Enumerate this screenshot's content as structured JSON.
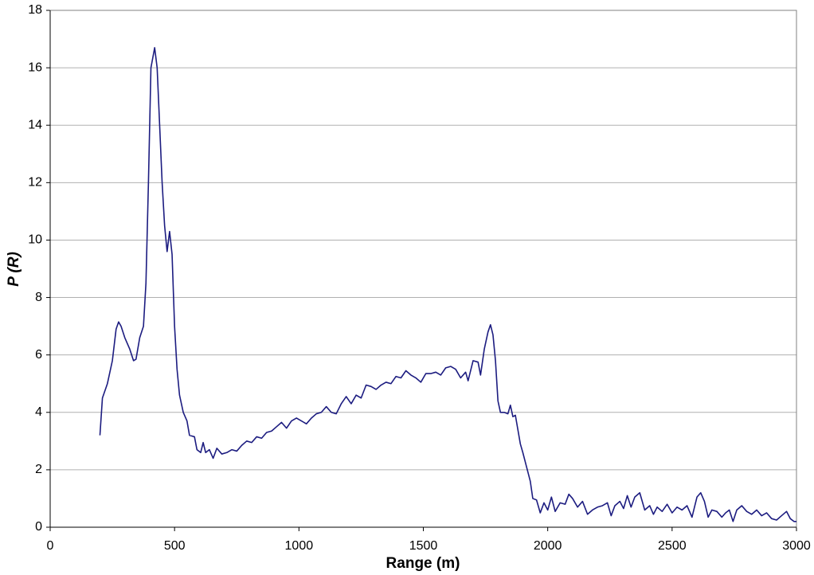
{
  "chart_data": {
    "type": "line",
    "x_label": "Range (m)",
    "y_label": "P (R)",
    "x": [
      200,
      210,
      230,
      250,
      265,
      275,
      285,
      300,
      320,
      335,
      345,
      360,
      375,
      385,
      395,
      405,
      420,
      430,
      440,
      450,
      460,
      470,
      480,
      490,
      500,
      510,
      520,
      535,
      550,
      560,
      580,
      590,
      605,
      615,
      625,
      640,
      655,
      670,
      690,
      710,
      730,
      750,
      770,
      790,
      810,
      830,
      850,
      870,
      890,
      910,
      930,
      950,
      970,
      990,
      1010,
      1030,
      1050,
      1070,
      1090,
      1110,
      1130,
      1150,
      1170,
      1190,
      1210,
      1230,
      1250,
      1270,
      1290,
      1310,
      1330,
      1350,
      1370,
      1390,
      1410,
      1430,
      1450,
      1470,
      1490,
      1510,
      1530,
      1550,
      1570,
      1590,
      1610,
      1630,
      1650,
      1670,
      1680,
      1700,
      1720,
      1730,
      1745,
      1760,
      1770,
      1780,
      1790,
      1800,
      1810,
      1825,
      1840,
      1850,
      1860,
      1870,
      1880,
      1890,
      1900,
      1915,
      1930,
      1940,
      1955,
      1970,
      1985,
      2000,
      2015,
      2030,
      2050,
      2070,
      2085,
      2100,
      2120,
      2140,
      2160,
      2180,
      2200,
      2220,
      2240,
      2255,
      2270,
      2290,
      2305,
      2320,
      2335,
      2350,
      2370,
      2390,
      2410,
      2425,
      2440,
      2460,
      2480,
      2500,
      2520,
      2540,
      2560,
      2580,
      2600,
      2615,
      2630,
      2645,
      2660,
      2680,
      2700,
      2715,
      2730,
      2745,
      2760,
      2780,
      2800,
      2820,
      2840,
      2860,
      2880,
      2900,
      2920,
      2940,
      2960,
      2975,
      2990,
      3000
    ],
    "series": [
      {
        "name": "P",
        "color": "#1c1c80",
        "values": [
          3.2,
          4.5,
          5.0,
          5.8,
          6.9,
          7.15,
          7.0,
          6.6,
          6.2,
          5.8,
          5.85,
          6.6,
          7.0,
          8.5,
          12,
          16.0,
          16.7,
          16.0,
          14,
          12,
          10.5,
          9.6,
          10.3,
          9.5,
          7,
          5.5,
          4.6,
          4.0,
          3.7,
          3.2,
          3.15,
          2.7,
          2.6,
          2.95,
          2.6,
          2.7,
          2.4,
          2.75,
          2.55,
          2.6,
          2.7,
          2.65,
          2.85,
          3.0,
          2.95,
          3.15,
          3.1,
          3.3,
          3.35,
          3.5,
          3.65,
          3.45,
          3.7,
          3.8,
          3.7,
          3.6,
          3.8,
          3.95,
          4.0,
          4.2,
          4.0,
          3.95,
          4.3,
          4.55,
          4.3,
          4.6,
          4.5,
          4.95,
          4.9,
          4.8,
          4.95,
          5.05,
          5.0,
          5.25,
          5.2,
          5.45,
          5.3,
          5.2,
          5.05,
          5.35,
          5.35,
          5.4,
          5.3,
          5.55,
          5.6,
          5.5,
          5.2,
          5.4,
          5.1,
          5.8,
          5.75,
          5.3,
          6.2,
          6.8,
          7.05,
          6.7,
          5.8,
          4.4,
          4.0,
          4.0,
          3.95,
          4.25,
          3.85,
          3.9,
          3.4,
          2.9,
          2.6,
          2.1,
          1.6,
          1.0,
          0.95,
          0.5,
          0.85,
          0.6,
          1.05,
          0.55,
          0.85,
          0.8,
          1.15,
          1.0,
          0.7,
          0.9,
          0.45,
          0.6,
          0.7,
          0.75,
          0.85,
          0.4,
          0.75,
          0.9,
          0.65,
          1.1,
          0.7,
          1.05,
          1.2,
          0.6,
          0.75,
          0.45,
          0.7,
          0.55,
          0.8,
          0.5,
          0.7,
          0.6,
          0.75,
          0.35,
          1.05,
          1.2,
          0.9,
          0.35,
          0.6,
          0.55,
          0.35,
          0.5,
          0.6,
          0.2,
          0.6,
          0.75,
          0.55,
          0.45,
          0.6,
          0.4,
          0.5,
          0.3,
          0.25,
          0.4,
          0.55,
          0.3,
          0.2,
          0.2
        ]
      }
    ],
    "xlim": [
      0,
      3000
    ],
    "xticks": [
      0,
      500,
      1000,
      1500,
      2000,
      2500,
      3000
    ],
    "ylim": [
      0,
      18
    ],
    "yticks": [
      0,
      2,
      4,
      6,
      8,
      10,
      12,
      14,
      16,
      18
    ],
    "grid": true
  }
}
